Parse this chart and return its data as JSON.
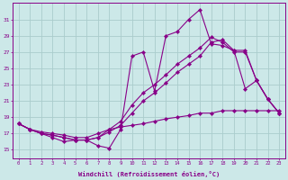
{
  "xlabel": "Windchill (Refroidissement éolien,°C)",
  "bg_color": "#cce8e8",
  "grid_color": "#aacccc",
  "line_color": "#880088",
  "xlim": [
    -0.5,
    23.5
  ],
  "ylim": [
    14,
    33
  ],
  "yticks": [
    15,
    17,
    19,
    21,
    23,
    25,
    27,
    29,
    31
  ],
  "xticks": [
    0,
    1,
    2,
    3,
    4,
    5,
    6,
    7,
    8,
    9,
    10,
    11,
    12,
    13,
    14,
    15,
    16,
    17,
    18,
    19,
    20,
    21,
    22,
    23
  ],
  "line1_x": [
    0,
    1,
    2,
    3,
    4,
    5,
    6,
    7,
    8,
    9,
    10,
    11,
    12,
    13,
    14,
    15,
    16,
    17,
    18,
    19,
    20,
    21,
    22,
    23
  ],
  "line1_y": [
    18.2,
    17.5,
    17.0,
    16.5,
    16.0,
    16.2,
    16.2,
    15.5,
    15.2,
    17.5,
    26.5,
    27.0,
    22.2,
    29.0,
    29.5,
    31.0,
    32.2,
    28.0,
    27.8,
    27.2,
    22.5,
    23.5,
    21.2,
    19.5
  ],
  "line2_x": [
    0,
    1,
    2,
    3,
    4,
    5,
    6,
    7,
    8,
    9,
    10,
    11,
    12,
    13,
    14,
    15,
    16,
    17,
    18,
    19,
    20,
    21,
    22,
    23
  ],
  "line2_y": [
    18.2,
    17.5,
    17.0,
    16.8,
    16.5,
    16.2,
    16.2,
    16.5,
    17.2,
    18.0,
    19.5,
    21.0,
    22.0,
    23.2,
    24.5,
    25.5,
    26.5,
    28.2,
    28.5,
    27.2,
    27.2,
    23.5,
    21.2,
    19.5
  ],
  "line3_x": [
    0,
    1,
    2,
    3,
    4,
    5,
    6,
    7,
    8,
    9,
    10,
    11,
    12,
    13,
    14,
    15,
    16,
    17,
    18,
    19,
    20,
    21,
    22,
    23
  ],
  "line3_y": [
    18.2,
    17.5,
    17.0,
    16.8,
    16.5,
    16.2,
    16.2,
    16.5,
    17.5,
    18.5,
    20.5,
    22.0,
    23.0,
    24.2,
    25.5,
    26.5,
    27.5,
    28.8,
    28.2,
    27.0,
    27.0,
    23.5,
    21.2,
    19.5
  ],
  "line4_x": [
    0,
    1,
    2,
    3,
    4,
    5,
    6,
    7,
    8,
    9,
    10,
    11,
    12,
    13,
    14,
    15,
    16,
    17,
    18,
    19,
    20,
    21,
    22,
    23
  ],
  "line4_y": [
    18.2,
    17.5,
    17.2,
    17.0,
    16.8,
    16.5,
    16.5,
    17.0,
    17.5,
    17.8,
    18.0,
    18.2,
    18.5,
    18.8,
    19.0,
    19.2,
    19.5,
    19.5,
    19.8,
    19.8,
    19.8,
    19.8,
    19.8,
    19.8
  ]
}
